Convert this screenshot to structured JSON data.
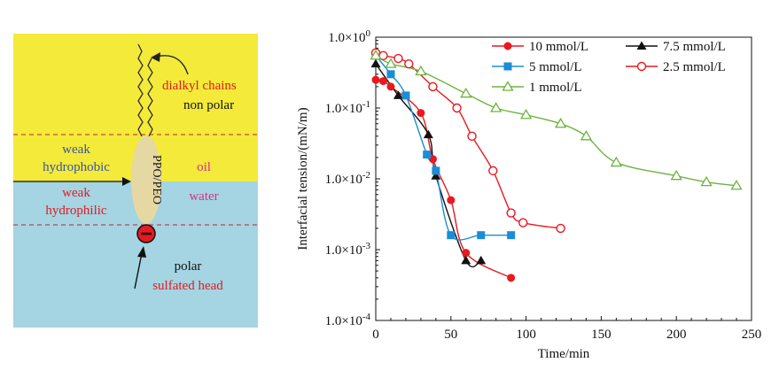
{
  "schematic": {
    "oil_color": "#f4ea3a",
    "water_color": "#a5d4e2",
    "label_dialkyl": "dialkyl chains",
    "label_nonpolar": "non polar",
    "label_weak_hydrophobic_1": "weak",
    "label_weak_hydrophobic_2": "hydrophobic",
    "label_weak_hydrophilic_1": "weak",
    "label_weak_hydrophilic_2": "hydrophilic",
    "label_oil": "oil",
    "label_water": "water",
    "label_ppo_peo": "PPO/PEO",
    "label_polar": "polar",
    "label_sulfated": "sulfated head",
    "head_symbol": "−"
  },
  "chart_data": {
    "type": "line",
    "xlabel": "Time/min",
    "ylabel": "Interfacial tension/(mN/m)",
    "xlim": [
      0,
      250
    ],
    "ylim": [
      0.0001,
      1
    ],
    "yscale": "log",
    "grid": false,
    "legend_position": "top-right",
    "x_ticks": [
      0,
      50,
      100,
      150,
      200,
      250
    ],
    "x_tick_labels": [
      "0",
      "50",
      "100",
      "150",
      "200",
      "250"
    ],
    "y_ticks": [
      0.0001,
      0.001,
      0.01,
      0.1,
      1
    ],
    "y_tick_labels": [
      {
        "mant": "1.0×10",
        "exp": "-4"
      },
      {
        "mant": "1.0×10",
        "exp": "-3"
      },
      {
        "mant": "1.0×10",
        "exp": "-2"
      },
      {
        "mant": "1.0×10",
        "exp": "-1"
      },
      {
        "mant": "1.0×10",
        "exp": "0"
      }
    ],
    "series": [
      {
        "name": "10 mmol/L",
        "color": "#e8191f",
        "marker": "circle-filled",
        "x": [
          0,
          5,
          10,
          30,
          38,
          50,
          60,
          90
        ],
        "y": [
          0.25,
          0.24,
          0.2,
          0.085,
          0.019,
          0.005,
          0.0009,
          0.0004
        ]
      },
      {
        "name": "7.5 mmol/L",
        "color": "#111111",
        "marker": "triangle-filled",
        "x": [
          0,
          15,
          35,
          40,
          60,
          70
        ],
        "y": [
          0.42,
          0.15,
          0.042,
          0.011,
          0.0007,
          0.0007
        ]
      },
      {
        "name": "5 mmol/L",
        "color": "#1a8dd6",
        "marker": "square-filled",
        "x": [
          0,
          10,
          20,
          34,
          40,
          50,
          70,
          90
        ],
        "y": [
          0.55,
          0.3,
          0.15,
          0.022,
          0.013,
          0.0016,
          0.0016,
          0.0016
        ]
      },
      {
        "name": "2.5 mmol/L",
        "color": "#e8191f",
        "marker": "circle-open",
        "x": [
          0,
          5,
          15,
          22,
          38,
          54,
          64,
          78,
          90,
          98,
          123
        ],
        "y": [
          0.6,
          0.55,
          0.5,
          0.42,
          0.2,
          0.1,
          0.04,
          0.013,
          0.0033,
          0.0024,
          0.002
        ]
      },
      {
        "name": "1 mmol/L",
        "color": "#6db33f",
        "marker": "triangle-open",
        "x": [
          0,
          10,
          30,
          60,
          80,
          100,
          123,
          140,
          160,
          200,
          220,
          240
        ],
        "y": [
          0.55,
          0.42,
          0.33,
          0.16,
          0.1,
          0.08,
          0.06,
          0.04,
          0.017,
          0.011,
          0.009,
          0.008
        ]
      }
    ]
  }
}
